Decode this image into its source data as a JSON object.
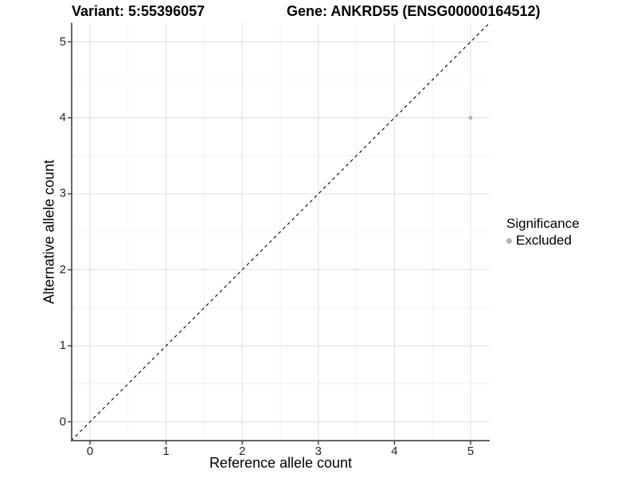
{
  "titles": {
    "variant": "Variant: 5:55396057",
    "gene": "Gene: ANKRD55 (ENSG00000164512)"
  },
  "chart_data": {
    "type": "scatter",
    "xlabel": "Reference allele count",
    "ylabel": "Alternative allele count",
    "x_ticks": [
      0,
      1,
      2,
      3,
      4,
      5
    ],
    "y_ticks": [
      0,
      1,
      2,
      3,
      4,
      5
    ],
    "x_minor_ticks": [
      0.5,
      1.5,
      2.5,
      3.5,
      4.5
    ],
    "y_minor_ticks": [
      0.5,
      1.5,
      2.5,
      3.5,
      4.5
    ],
    "xlim": [
      -0.25,
      5.25
    ],
    "ylim": [
      -0.25,
      5.25
    ],
    "grid": true,
    "reference_line": {
      "type": "identity",
      "slope": 1,
      "intercept": 0,
      "linestyle": "dashed",
      "color": "#000000"
    },
    "series": [
      {
        "name": "Excluded",
        "color": "#b3b3b3",
        "points": [
          {
            "x": 5,
            "y": 4
          }
        ]
      }
    ],
    "legend": {
      "title": "Significance",
      "position": "right",
      "items": [
        {
          "label": "Excluded",
          "color": "#b3b3b3"
        }
      ]
    }
  },
  "colors": {
    "background": "#ffffff",
    "grid_major": "#e3e3e3",
    "grid_minor": "#f1f1f1",
    "axis_line": "#404040",
    "tick_mark": "#333333",
    "tick_label": "#262626",
    "title_text": "#000000"
  }
}
